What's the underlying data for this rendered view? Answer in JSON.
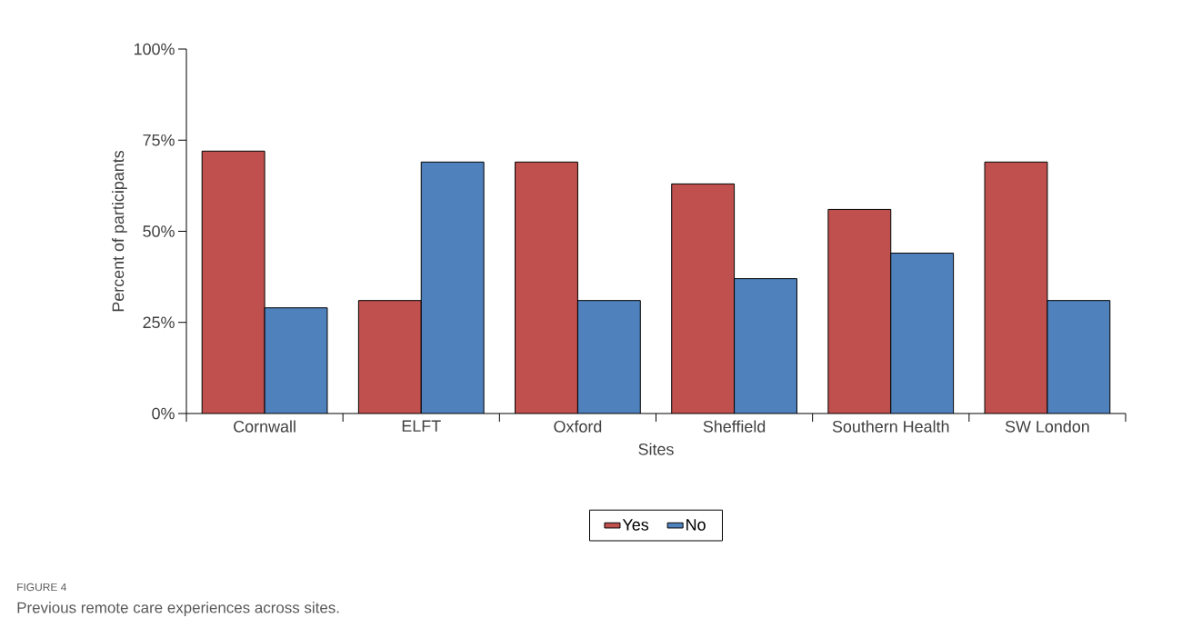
{
  "chart_data": {
    "type": "bar",
    "xlabel": "Sites",
    "ylabel": "Percent of participants",
    "categories": [
      "Cornwall",
      "ELFT",
      "Oxford",
      "Sheffield",
      "Southern Health",
      "SW London"
    ],
    "series": [
      {
        "name": "Yes",
        "color": "#c0504d",
        "values": [
          72,
          31,
          69,
          63,
          56,
          69
        ]
      },
      {
        "name": "No",
        "color": "#4f81bd",
        "values": [
          29,
          69,
          31,
          37,
          44,
          31
        ]
      }
    ],
    "ylim": [
      0,
      100
    ],
    "yticks": [
      {
        "value": 0,
        "label": "0%"
      },
      {
        "value": 25,
        "label": "25%"
      },
      {
        "value": 50,
        "label": "50%"
      },
      {
        "value": 75,
        "label": "75%"
      },
      {
        "value": 100,
        "label": "100%"
      }
    ],
    "legend": "bottom",
    "annotations": [
      "FIGURE 4",
      "Previous remote care experiences across sites."
    ]
  }
}
